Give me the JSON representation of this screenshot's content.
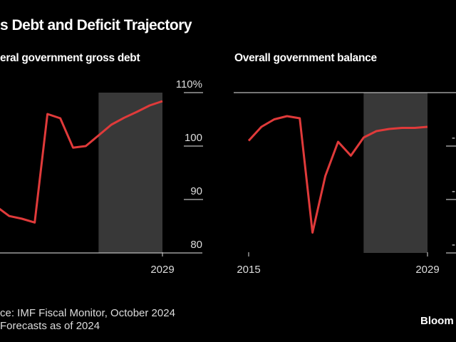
{
  "title": "s Debt and Deficit Trajectory",
  "source": "ce: IMF Fiscal Monitor, October 2024",
  "note": "Forecasts as of 2024",
  "logo": "Bloom",
  "colors": {
    "background": "#000000",
    "line": "#e03a3a",
    "forecast_band": "#383838",
    "axis": "#bbbbbb"
  },
  "chart_data": [
    {
      "type": "line",
      "title": "eral government gross debt",
      "x": [
        2016,
        2017,
        2018,
        2019,
        2020,
        2021,
        2022,
        2023,
        2024,
        2025,
        2026,
        2027,
        2028,
        2029
      ],
      "values": [
        88.7,
        86.9,
        86.4,
        85.7,
        106.0,
        105.2,
        99.7,
        100.0,
        102.0,
        104.0,
        105.3,
        106.4,
        107.6,
        108.4
      ],
      "xticks": [
        "2029"
      ],
      "yticks": [
        "80",
        "90",
        "100",
        "110%"
      ],
      "ylim": [
        80,
        110
      ],
      "forecast_start": 2024,
      "forecast_end": 2029
    },
    {
      "type": "line",
      "title": "Overall government balance",
      "x": [
        2015,
        2016,
        2017,
        2018,
        2019,
        2020,
        2021,
        2022,
        2023,
        2024,
        2025,
        2026,
        2027,
        2028,
        2029
      ],
      "values": [
        -4.5,
        -3.2,
        -2.5,
        -2.2,
        -2.4,
        -13.1,
        -7.8,
        -4.6,
        -5.9,
        -4.2,
        -3.6,
        -3.4,
        -3.3,
        -3.3,
        -3.2
      ],
      "xticks": [
        "2015",
        "2029"
      ],
      "yticks": [
        "-",
        "-1",
        "-1"
      ],
      "ylim": [
        -15,
        0
      ],
      "forecast_start": 2024,
      "forecast_end": 2029
    }
  ]
}
